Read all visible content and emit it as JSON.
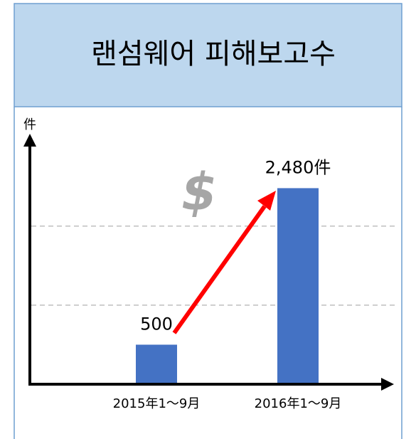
{
  "chart_data": {
    "type": "bar",
    "title": "랜섬웨어 피해보고수",
    "y_label": "件",
    "categories": [
      "2015年1～9月",
      "2016年1～9月"
    ],
    "values": [
      500,
      2480
    ],
    "value_labels": [
      "500",
      "2,480件"
    ],
    "color": "#4472c4",
    "ylim": [
      0,
      3150
    ],
    "grid_lines": [
      1000,
      2000
    ],
    "annotation": "$"
  }
}
